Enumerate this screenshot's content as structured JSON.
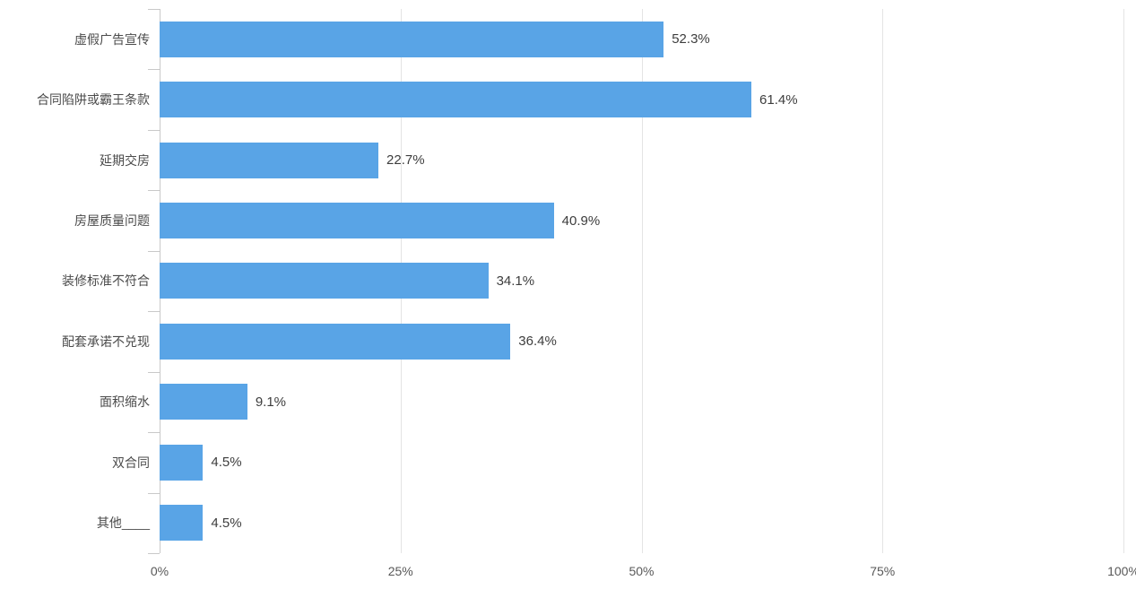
{
  "chart_data": {
    "type": "bar",
    "orientation": "horizontal",
    "title": "",
    "categories": [
      "虚假广告宣传",
      "合同陷阱或霸王条款",
      "延期交房",
      "房屋质量问题",
      "装修标准不符合",
      "配套承诺不兑现",
      "面积缩水",
      "双合同",
      "其他____"
    ],
    "values": [
      52.3,
      61.4,
      22.7,
      40.9,
      34.1,
      36.4,
      9.1,
      4.5,
      4.5
    ],
    "value_labels": [
      "52.3%",
      "61.4%",
      "22.7%",
      "40.9%",
      "34.1%",
      "36.4%",
      "9.1%",
      "4.5%",
      "4.5%"
    ],
    "x_ticks": [
      "0%",
      "25%",
      "50%",
      "75%",
      "100%"
    ],
    "xlim": [
      0,
      100
    ],
    "grid": true,
    "legend": "none",
    "colors": {
      "bar": "#59a4e6",
      "gridline": "#e4e4e4",
      "axis": "#c9c9c9",
      "category_label": "#4b4b4b",
      "value_label": "#3d3d3d",
      "tick_label": "#585858"
    }
  }
}
